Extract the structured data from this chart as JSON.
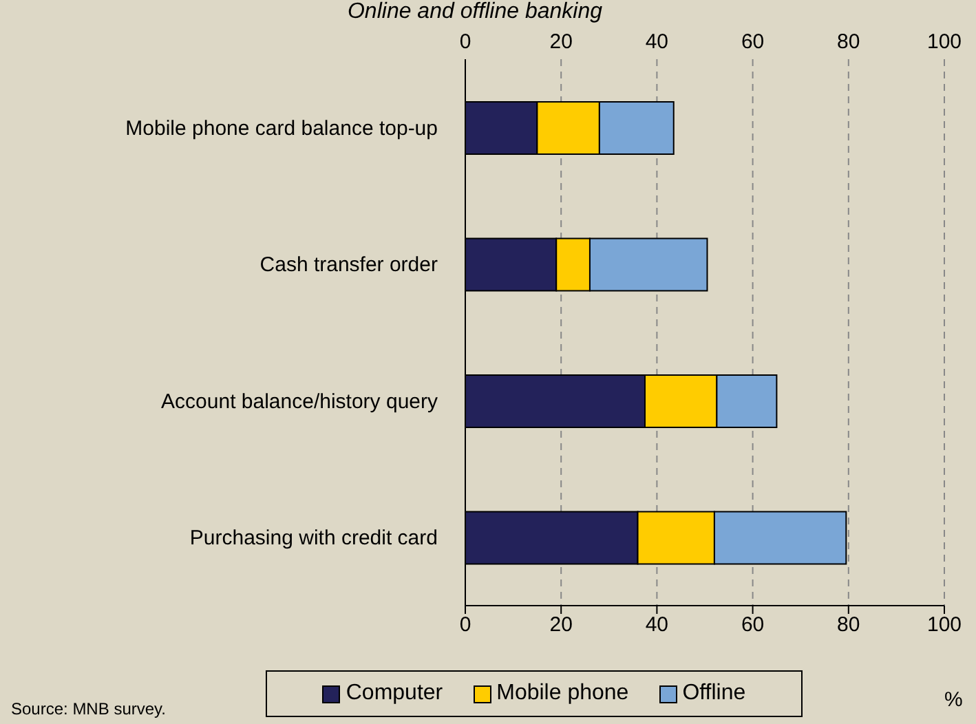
{
  "chart_data": {
    "type": "bar",
    "orientation": "horizontal",
    "stacked": true,
    "title": "Online and offline banking",
    "xlabel": "%",
    "categories": [
      "Mobile phone card balance top-up",
      "Cash transfer order",
      "Account balance/history query",
      "Purchasing with credit card"
    ],
    "series": [
      {
        "name": "Computer",
        "color": "#23225a",
        "values": [
          15,
          19,
          37.5,
          36
        ]
      },
      {
        "name": "Mobile phone",
        "color": "#ffcc00",
        "values": [
          13,
          7,
          15,
          16
        ]
      },
      {
        "name": "Offline",
        "color": "#7aa6d6",
        "values": [
          15.5,
          24.5,
          12.5,
          27.5
        ]
      }
    ],
    "xlim": [
      0,
      100
    ],
    "xticks": [
      0,
      20,
      40,
      60,
      80,
      100
    ],
    "x2lim": [
      0,
      100
    ],
    "x2ticks": [
      0,
      20,
      40,
      60,
      80,
      100
    ],
    "grid": "x",
    "legend": "bottom",
    "annotations": [
      "Source: MNB survey."
    ]
  }
}
